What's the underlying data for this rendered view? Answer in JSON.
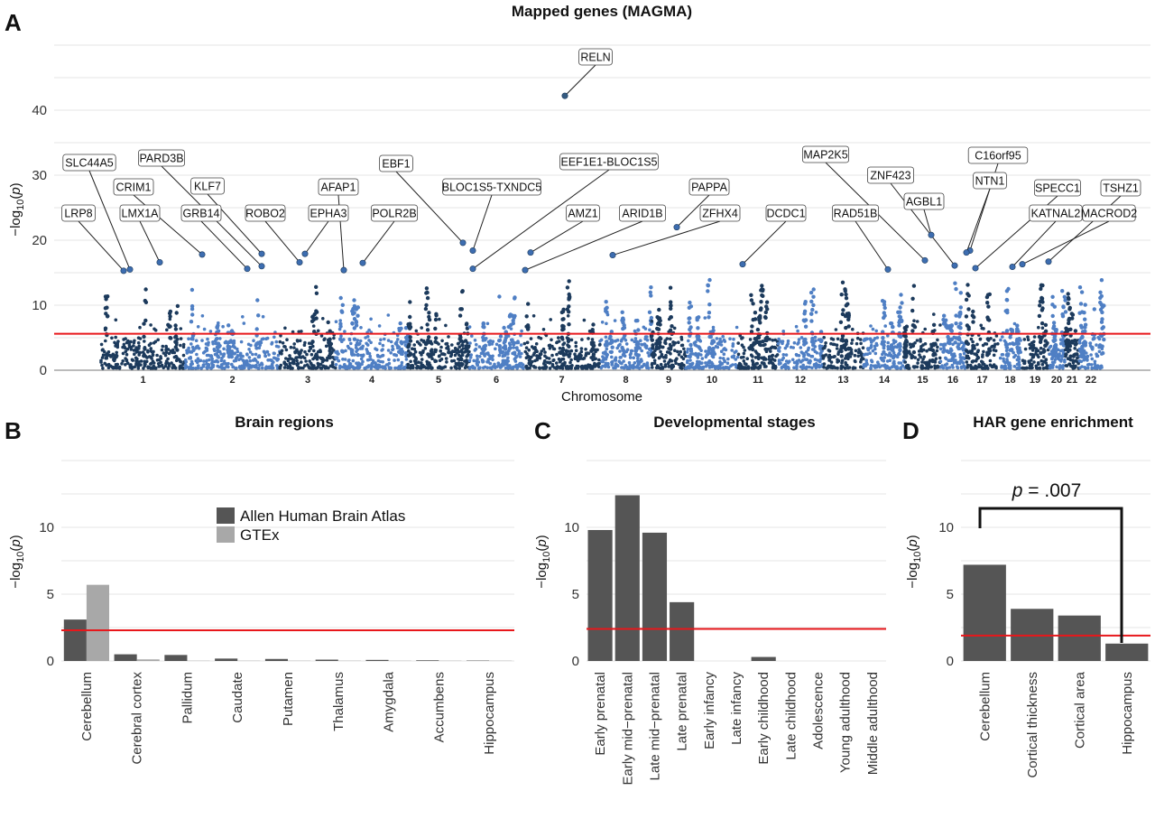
{
  "chart_data": [
    {
      "panel": "A",
      "type": "scatter",
      "title": "Mapped genes (MAGMA)",
      "xlabel": "Chromosome",
      "ylabel": "-log10(p)",
      "ylim": [
        0,
        45
      ],
      "yticks": [
        "0",
        "10",
        "20",
        "30",
        "40"
      ],
      "chromosomes": [
        "1",
        "2",
        "3",
        "4",
        "5",
        "6",
        "7",
        "8",
        "9",
        "10",
        "11",
        "12",
        "13",
        "14",
        "15",
        "16",
        "17",
        "18",
        "19",
        "20",
        "21",
        "22"
      ],
      "threshold": 5.6,
      "labeled_genes": [
        {
          "name": "RELN",
          "chr": "7",
          "y": 42.2
        },
        {
          "name": "SLC44A5",
          "chr": "1",
          "y": 15.5
        },
        {
          "name": "LRP8",
          "chr": "1",
          "y": 15.3
        },
        {
          "name": "CRIM1",
          "chr": "2",
          "y": 17.8
        },
        {
          "name": "LMX1A",
          "chr": "1",
          "y": 16.6
        },
        {
          "name": "PARD3B",
          "chr": "2",
          "y": 16.0
        },
        {
          "name": "KLF7",
          "chr": "2",
          "y": 17.9
        },
        {
          "name": "GRB14",
          "chr": "2",
          "y": 15.6
        },
        {
          "name": "ROBO2",
          "chr": "3",
          "y": 16.6
        },
        {
          "name": "AFAP1",
          "chr": "4",
          "y": 15.4
        },
        {
          "name": "EPHA3",
          "chr": "3",
          "y": 17.9
        },
        {
          "name": "POLR2B",
          "chr": "4",
          "y": 16.5
        },
        {
          "name": "EBF1",
          "chr": "5",
          "y": 19.6
        },
        {
          "name": "BLOC1S5-TXNDC5",
          "chr": "6",
          "y": 18.4
        },
        {
          "name": "EEF1E1-BLOC1S5",
          "chr": "6",
          "y": 15.6
        },
        {
          "name": "AMZ1",
          "chr": "7",
          "y": 18.1
        },
        {
          "name": "ARID1B",
          "chr": "6",
          "y": 15.4
        },
        {
          "name": "PAPPA",
          "chr": "9",
          "y": 22.0
        },
        {
          "name": "ZFHX4",
          "chr": "8",
          "y": 17.7
        },
        {
          "name": "DCDC1",
          "chr": "11",
          "y": 16.3
        },
        {
          "name": "MAP2K5",
          "chr": "15",
          "y": 16.9
        },
        {
          "name": "RAD51B",
          "chr": "14",
          "y": 15.5
        },
        {
          "name": "ZNF423",
          "chr": "16",
          "y": 16.1
        },
        {
          "name": "AGBL1",
          "chr": "15",
          "y": 20.8
        },
        {
          "name": "C16orf95",
          "chr": "16",
          "y": 18.4
        },
        {
          "name": "NTN1",
          "chr": "17",
          "y": 18.1
        },
        {
          "name": "SPECC1",
          "chr": "17",
          "y": 15.7
        },
        {
          "name": "KATNAL2",
          "chr": "18",
          "y": 15.9
        },
        {
          "name": "TSHZ1",
          "chr": "18",
          "y": 16.7
        },
        {
          "name": "MACROD2",
          "chr": "20",
          "y": 16.3
        }
      ]
    },
    {
      "panel": "B",
      "type": "bar",
      "title": "Brain regions",
      "ylabel": "-log10(p)",
      "ylim": [
        0,
        13
      ],
      "yticks": [
        "0",
        "5",
        "10"
      ],
      "threshold": 2.3,
      "categories": [
        "Cerebellum",
        "Cerebral cortex",
        "Pallidum",
        "Caudate",
        "Putamen",
        "Thalamus",
        "Amygdala",
        "Accumbens",
        "Hippocampus"
      ],
      "series": [
        {
          "name": "Allen Human Brain Atlas",
          "color": "#555555",
          "values": [
            3.1,
            0.5,
            0.45,
            0.18,
            0.15,
            0.1,
            0.08,
            0.05,
            0.03
          ]
        },
        {
          "name": "GTEx",
          "color": "#a8a8a8",
          "values": [
            5.7,
            0.12,
            0.02,
            0.02,
            0.02,
            0.02,
            0.02,
            0.02,
            0.02
          ]
        }
      ]
    },
    {
      "panel": "C",
      "type": "bar",
      "title": "Developmental stages",
      "ylabel": "-log10(p)",
      "ylim": [
        0,
        13
      ],
      "yticks": [
        "0",
        "5",
        "10"
      ],
      "threshold": 2.4,
      "categories": [
        "Early prenatal",
        "Early mid−prenatal",
        "Late mid−prenatal",
        "Late prenatal",
        "Early infancy",
        "Late infancy",
        "Early childhood",
        "Late childhood",
        "Adolescence",
        "Young adulthood",
        "Middle adulthood"
      ],
      "series": [
        {
          "color": "#555555",
          "values": [
            9.8,
            12.4,
            9.6,
            4.4,
            0.0,
            0.0,
            0.3,
            0.0,
            0.0,
            0.0,
            0.0
          ]
        }
      ]
    },
    {
      "panel": "D",
      "type": "bar",
      "title": "HAR gene enrichment",
      "ylabel": "-log10(p)",
      "ylim": [
        0,
        13
      ],
      "yticks": [
        "0",
        "5",
        "10"
      ],
      "threshold": 1.9,
      "categories": [
        "Cerebellum",
        "Cortical thickness",
        "Cortical area",
        "Hippocampus"
      ],
      "series": [
        {
          "color": "#555555",
          "values": [
            7.2,
            3.9,
            3.4,
            1.3
          ]
        }
      ],
      "annotation": {
        "p_symbol": "p",
        "p_value": " = .007"
      }
    }
  ],
  "panel_letters": [
    "A",
    "B",
    "C",
    "D"
  ],
  "colors": {
    "dark": "#1c3a5c",
    "light": "#4f7fc4",
    "threshold": "#e8171b",
    "bar_dark": "#555555",
    "bar_light": "#a8a8a8",
    "grid": "#e5e5e5"
  }
}
